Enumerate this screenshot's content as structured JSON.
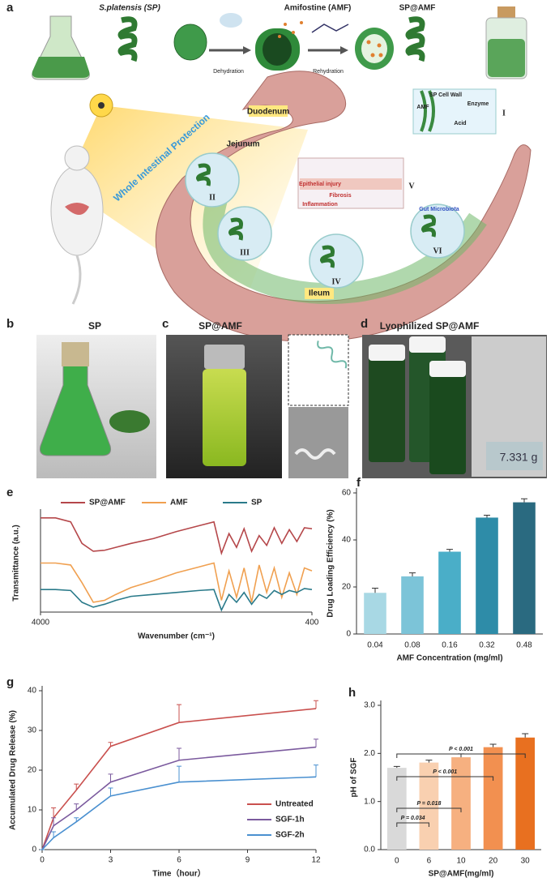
{
  "panel_a": {
    "letter": "a",
    "sp": "S.platensis (SP)",
    "amf": "Amifostine (AMF)",
    "spamf": "SP@AMF",
    "dehydration": "Dehydration",
    "rehydration": "Rehydration",
    "protection": "Whole Intestinal Protection",
    "duodenum": "Duodenum",
    "jejunum": "Jejunum",
    "ileum": "Ileum",
    "roman": [
      "I",
      "II",
      "III",
      "IV",
      "V",
      "VI"
    ],
    "inset_1": {
      "wall": "SP Cell Wall",
      "enzyme": "Enzyme",
      "amf": "AMF",
      "acid": "Acid"
    },
    "inset_5": {
      "injury": "Epithelial injury",
      "fibrosis": "Fibrosis",
      "inflammation": "Inflammation"
    },
    "microbiota": "Gut Microbiota"
  },
  "panel_b": {
    "letter": "b",
    "title": "SP"
  },
  "panel_c": {
    "letter": "c",
    "title": "SP@AMF"
  },
  "panel_d": {
    "letter": "d",
    "title": "Lyophilized SP@AMF",
    "scale_reading": "7.331 g"
  },
  "chart_data": [
    {
      "panel": "e",
      "type": "line",
      "xlabel": "Wavenumber (cm⁻¹)",
      "ylabel": "Transmittance (a.u.)",
      "x": [
        4000,
        3800,
        3600,
        3450,
        3300,
        3150,
        3000,
        2800,
        2500,
        2200,
        1900,
        1700,
        1600,
        1500,
        1400,
        1300,
        1200,
        1100,
        1000,
        900,
        800,
        700,
        600,
        500,
        400
      ],
      "xlim": [
        4000,
        400
      ],
      "xticks": [
        4000,
        400
      ],
      "ylim": [
        0,
        100
      ],
      "yticks": [],
      "legend": "top",
      "series": [
        {
          "name": "SP@AMF",
          "color": "#b5474a",
          "values": [
            96,
            96,
            92,
            70,
            62,
            63,
            66,
            70,
            75,
            82,
            88,
            92,
            60,
            80,
            66,
            85,
            62,
            78,
            68,
            86,
            70,
            84,
            72,
            86,
            85
          ]
        },
        {
          "name": "AMF",
          "color": "#f0a050",
          "values": [
            50,
            50,
            48,
            30,
            10,
            12,
            18,
            25,
            32,
            40,
            46,
            50,
            12,
            42,
            15,
            45,
            10,
            48,
            20,
            45,
            15,
            40,
            18,
            45,
            42
          ]
        },
        {
          "name": "SP",
          "color": "#2a7a8a",
          "values": [
            23,
            23,
            22,
            10,
            5,
            8,
            12,
            16,
            18,
            20,
            22,
            23,
            2,
            18,
            10,
            20,
            8,
            18,
            14,
            22,
            18,
            22,
            20,
            24,
            23
          ]
        }
      ]
    },
    {
      "panel": "f",
      "type": "bar",
      "xlabel": "AMF Concentration (mg/ml)",
      "ylabel": "Drug Loading Efficiency (%)",
      "categories": [
        "0.04",
        "0.08",
        "0.16",
        "0.32",
        "0.48"
      ],
      "values": [
        17.5,
        24.5,
        35,
        49.5,
        56
      ],
      "errors": [
        2,
        1.5,
        1,
        1,
        1.5
      ],
      "colors": [
        "#a8d8e4",
        "#7cc4d8",
        "#4aaec8",
        "#2e8ca8",
        "#2a6a80"
      ],
      "ylim": [
        0,
        60
      ],
      "yticks": [
        0,
        20,
        40,
        60
      ]
    },
    {
      "panel": "g",
      "type": "line",
      "xlabel": "Time（hour）",
      "ylabel": "Accumulated Drug Release (%)",
      "x": [
        0,
        0.5,
        1.5,
        3,
        6,
        12
      ],
      "xlim": [
        0,
        12
      ],
      "xticks": [
        0,
        3,
        6,
        9,
        12
      ],
      "ylim": [
        0,
        40
      ],
      "yticks": [
        0,
        10,
        20,
        30,
        40
      ],
      "legend": "lower right",
      "series": [
        {
          "name": "Untreated",
          "color": "#c9504e",
          "values": [
            0,
            8,
            15,
            26,
            32,
            35.5
          ],
          "errors": [
            0,
            2.5,
            1.5,
            1,
            4.5,
            2
          ]
        },
        {
          "name": "SGF-1h",
          "color": "#7b5a9e",
          "values": [
            0,
            6,
            10,
            17,
            22.5,
            25.8
          ],
          "errors": [
            0,
            2,
            1.5,
            2,
            3,
            2
          ]
        },
        {
          "name": "SGF-2h",
          "color": "#4a90d0",
          "values": [
            0,
            3,
            7,
            13.5,
            17,
            18.3
          ],
          "errors": [
            0,
            1.5,
            1,
            2,
            4,
            3
          ]
        }
      ]
    },
    {
      "panel": "h",
      "type": "bar",
      "xlabel": "SP@AMF(mg/ml)",
      "ylabel": "pH of SGF",
      "categories": [
        "0",
        "6",
        "10",
        "20",
        "30"
      ],
      "values": [
        1.7,
        1.81,
        1.92,
        2.13,
        2.33
      ],
      "errors": [
        0.03,
        0.05,
        0.07,
        0.06,
        0.08
      ],
      "colors": [
        "#d9d9d9",
        "#f9d0b0",
        "#f6b080",
        "#f29050",
        "#e87020"
      ],
      "ylim": [
        0,
        3
      ],
      "yticks": [
        {
          "value": 0,
          "label": "0.0"
        },
        {
          "value": 1,
          "label": "1.0"
        },
        {
          "value": 2,
          "label": "2.0"
        },
        {
          "value": 3,
          "label": "3.0"
        }
      ],
      "annotations": [
        "P = 0.034",
        "P = 0.018",
        "P < 0.001",
        "P < 0.001"
      ]
    }
  ]
}
